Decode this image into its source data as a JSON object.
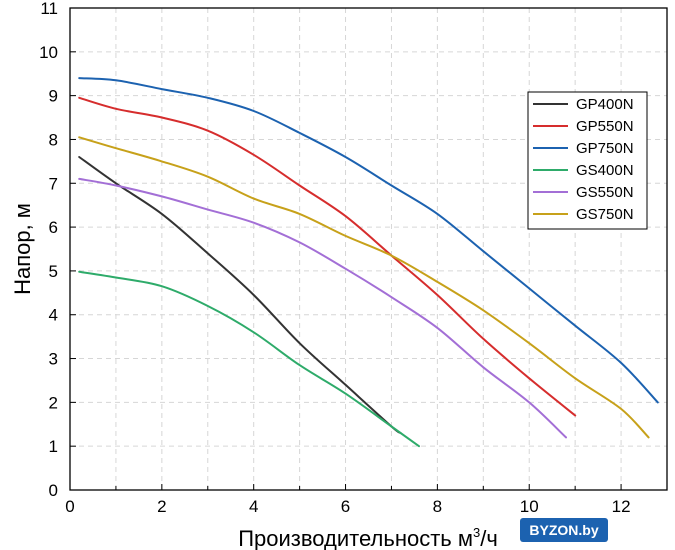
{
  "chart_data": {
    "type": "line",
    "xlabel": "Производительность м",
    "xlabel_sup": "3",
    "xlabel_end": "/ч",
    "ylabel": "Напор, м",
    "xlim": [
      0,
      13
    ],
    "ylim": [
      0,
      11
    ],
    "xticks": [
      0,
      2,
      4,
      6,
      8,
      10,
      12
    ],
    "yticks": [
      0,
      1,
      2,
      3,
      4,
      5,
      6,
      7,
      8,
      9,
      10,
      11
    ],
    "grid": true,
    "legend_position": "top-right",
    "series": [
      {
        "name": "GP400N",
        "color": "#333333",
        "points": [
          [
            0.2,
            7.6
          ],
          [
            1,
            7.0
          ],
          [
            2,
            6.3
          ],
          [
            3,
            5.4
          ],
          [
            4,
            4.45
          ],
          [
            5,
            3.35
          ],
          [
            6,
            2.4
          ],
          [
            7,
            1.45
          ],
          [
            7.2,
            1.3
          ]
        ]
      },
      {
        "name": "GP550N",
        "color": "#d62d2d",
        "points": [
          [
            0.2,
            8.95
          ],
          [
            1,
            8.7
          ],
          [
            2,
            8.5
          ],
          [
            3,
            8.2
          ],
          [
            4,
            7.65
          ],
          [
            5,
            6.95
          ],
          [
            6,
            6.25
          ],
          [
            7,
            5.35
          ],
          [
            8,
            4.45
          ],
          [
            9,
            3.45
          ],
          [
            10,
            2.55
          ],
          [
            11,
            1.7
          ]
        ]
      },
      {
        "name": "GP750N",
        "color": "#1c62b0",
        "points": [
          [
            0.2,
            9.4
          ],
          [
            1,
            9.35
          ],
          [
            2,
            9.15
          ],
          [
            3,
            8.95
          ],
          [
            4,
            8.65
          ],
          [
            5,
            8.15
          ],
          [
            6,
            7.6
          ],
          [
            7,
            6.95
          ],
          [
            8,
            6.3
          ],
          [
            9,
            5.45
          ],
          [
            10,
            4.6
          ],
          [
            11,
            3.75
          ],
          [
            12,
            2.9
          ],
          [
            12.8,
            2.0
          ]
        ]
      },
      {
        "name": "GS400N",
        "color": "#2eab6a",
        "points": [
          [
            0.2,
            4.98
          ],
          [
            1,
            4.85
          ],
          [
            2,
            4.65
          ],
          [
            3,
            4.2
          ],
          [
            4,
            3.6
          ],
          [
            5,
            2.85
          ],
          [
            6,
            2.2
          ],
          [
            7,
            1.45
          ],
          [
            7.6,
            1.0
          ]
        ]
      },
      {
        "name": "GS550N",
        "color": "#a36fd6",
        "points": [
          [
            0.2,
            7.1
          ],
          [
            1,
            6.95
          ],
          [
            2,
            6.7
          ],
          [
            3,
            6.4
          ],
          [
            4,
            6.1
          ],
          [
            5,
            5.65
          ],
          [
            6,
            5.05
          ],
          [
            7,
            4.4
          ],
          [
            8,
            3.7
          ],
          [
            9,
            2.8
          ],
          [
            10,
            2.0
          ],
          [
            10.8,
            1.2
          ]
        ]
      },
      {
        "name": "GS750N",
        "color": "#c7a11a",
        "points": [
          [
            0.2,
            8.05
          ],
          [
            1,
            7.8
          ],
          [
            2,
            7.5
          ],
          [
            3,
            7.15
          ],
          [
            4,
            6.65
          ],
          [
            5,
            6.3
          ],
          [
            6,
            5.8
          ],
          [
            7,
            5.35
          ],
          [
            8,
            4.75
          ],
          [
            9,
            4.1
          ],
          [
            10,
            3.35
          ],
          [
            11,
            2.55
          ],
          [
            12,
            1.85
          ],
          [
            12.6,
            1.2
          ]
        ]
      }
    ]
  },
  "watermark": {
    "text": "BYZON.by",
    "color": "#1c62b0"
  }
}
